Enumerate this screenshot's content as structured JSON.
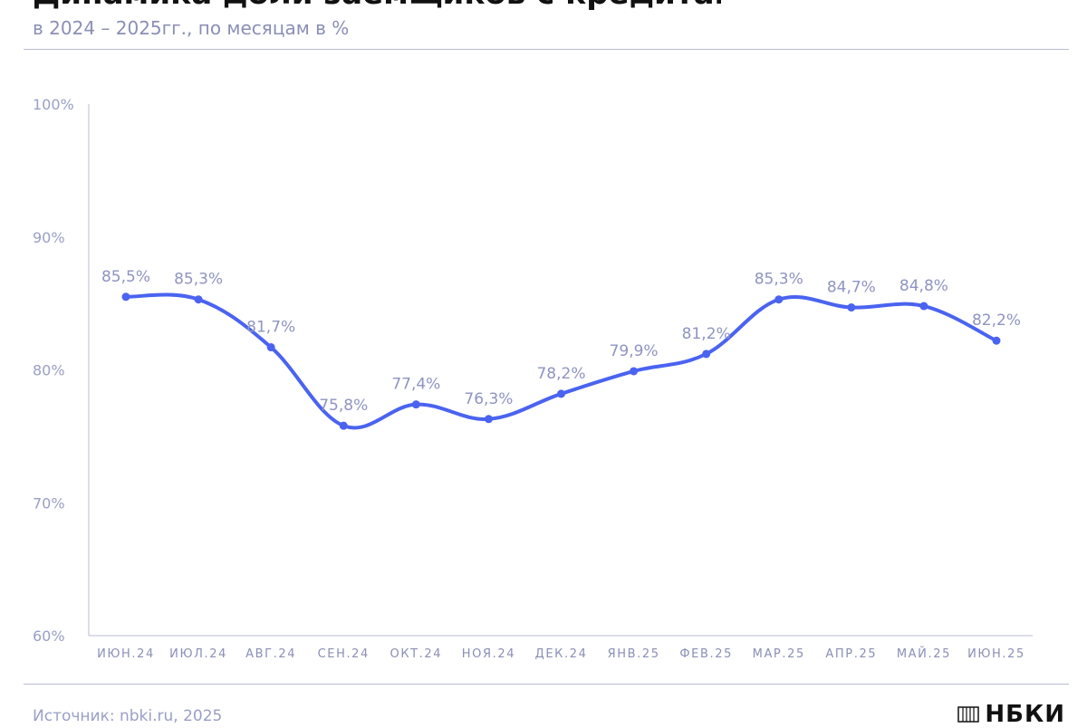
{
  "header": {
    "title": "Динамика доли заёмщиков с кредитами",
    "subtitle": "в 2024 – 2025гг., по месяцам в %"
  },
  "footer": {
    "source": "Источник: nbki.ru, 2025",
    "logo_text": "НБКИ"
  },
  "colors": {
    "line": "#4a63f0",
    "axis": "#b9bcd6",
    "text_muted": "#9aa0c6"
  },
  "chart_data": {
    "type": "line",
    "title": "Динамика доли заёмщиков с кредитами",
    "subtitle": "в 2024 – 2025гг., по месяцам в %",
    "xlabel": "",
    "ylabel": "",
    "categories": [
      "ИЮН.24",
      "ИЮЛ.24",
      "АВГ.24",
      "СЕН.24",
      "ОКТ.24",
      "НОЯ.24",
      "ДЕК.24",
      "ЯНВ.25",
      "ФЕВ.25",
      "МАР.25",
      "АПР.25",
      "МАЙ.25",
      "ИЮН.25"
    ],
    "series": [
      {
        "values": [
          85.5,
          85.3,
          81.7,
          75.8,
          77.4,
          76.3,
          78.2,
          79.9,
          81.2,
          85.3,
          84.7,
          84.8,
          82.2
        ],
        "labels": [
          "85,5%",
          "85,3%",
          "81,7%",
          "75,8%",
          "77,4%",
          "76,3%",
          "78,2%",
          "79,9%",
          "81,2%",
          "85,3%",
          "84,7%",
          "84,8%",
          "82,2%"
        ]
      }
    ],
    "ylim": [
      60,
      100
    ],
    "yticks": [
      {
        "value": 100,
        "label": "100%"
      },
      {
        "value": 90,
        "label": "90%"
      },
      {
        "value": 80,
        "label": "80%"
      },
      {
        "value": 70,
        "label": "70%"
      },
      {
        "value": 60,
        "label": "60%"
      }
    ],
    "grid": false,
    "legend": "none"
  }
}
